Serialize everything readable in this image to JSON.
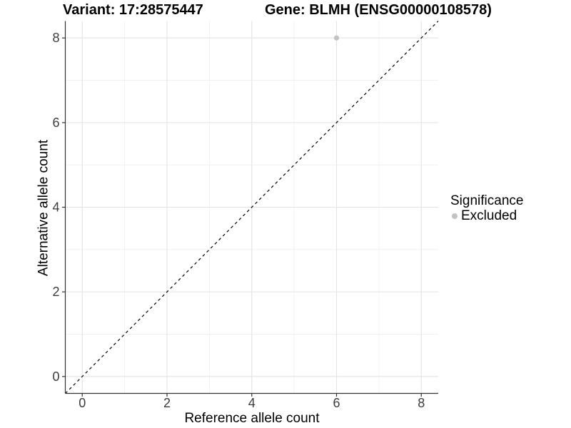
{
  "titles": {
    "variant": "Variant: 17:28575447",
    "gene": "Gene: BLMH (ENSG00000108578)"
  },
  "legend": {
    "title": "Significance",
    "items": [
      {
        "label": "Excluded",
        "color": "#c3c3c3"
      }
    ]
  },
  "chart_data": {
    "type": "scatter",
    "title": "Variant: 17:28575447 | Gene: BLMH (ENSG00000108578)",
    "xlabel": "Reference allele count",
    "ylabel": "Alternative allele count",
    "xlim": [
      -0.4,
      8.4
    ],
    "ylim": [
      -0.4,
      8.4
    ],
    "x_ticks": [
      0,
      2,
      4,
      6,
      8
    ],
    "y_ticks": [
      0,
      2,
      4,
      6,
      8
    ],
    "x_minor_ticks": [
      1,
      3,
      5,
      7
    ],
    "y_minor_ticks": [
      1,
      3,
      5,
      7
    ],
    "grid": "on",
    "legend_position": "right",
    "series": [
      {
        "name": "Excluded",
        "color": "#c3c3c3",
        "points": [
          {
            "x": 6,
            "y": 8
          }
        ]
      }
    ],
    "reference_line": {
      "kind": "identity",
      "equation": "y = x",
      "style": "dashed",
      "color": "#000000"
    }
  },
  "colors": {
    "background": "#ffffff",
    "point": "#c3c3c3",
    "grid_major": "#e3e3e3",
    "grid_minor": "#efefef",
    "axis_line": "#333333",
    "tick_label": "#3c3c3c",
    "title_text": "#000000"
  }
}
